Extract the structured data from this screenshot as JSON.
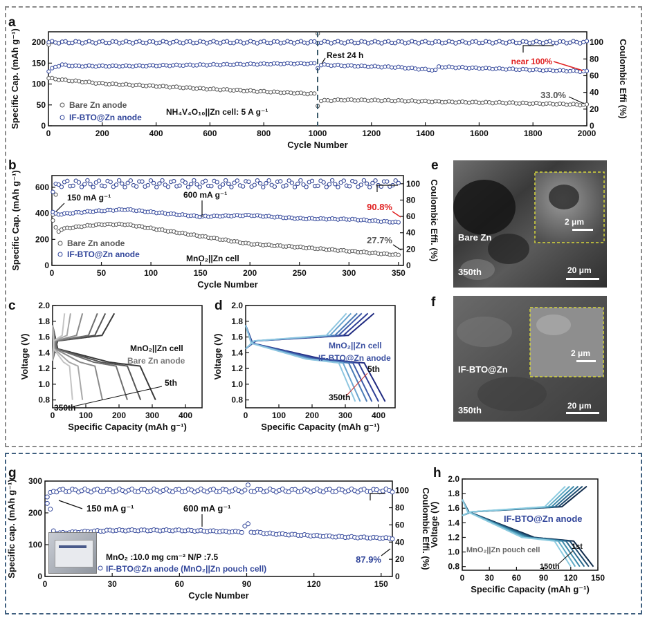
{
  "colors": {
    "blue": "#33479b",
    "gray": "#555555",
    "red": "#e02020"
  },
  "panels": [
    {
      "letter": "a",
      "chart_data": {
        "type": "scatter",
        "xlabel": "Cycle Number",
        "ylabel": "Specific Cap. (mAh g⁻¹)",
        "y2label": "Coulombic Effi (%)",
        "xlim": [
          0,
          2000
        ],
        "ylim": [
          0,
          225
        ],
        "y2lim": [
          0,
          112.5
        ],
        "xticks": [
          0,
          200,
          400,
          600,
          800,
          1000,
          1200,
          1400,
          1600,
          1800,
          2000
        ],
        "yticks": [
          0,
          50,
          100,
          150,
          200
        ],
        "y2ticks": [
          0,
          20,
          40,
          60,
          80,
          100
        ],
        "series": [
          {
            "name": "Bare Zn anode",
            "axis": "left",
            "color": "#555555",
            "x": [
              1,
              50,
              100,
              200,
              400,
              600,
              800,
              998,
              1000,
              1010,
              1100,
              1300,
              1500,
              1700,
              1900,
              2000
            ],
            "y": [
              114,
              110,
              107,
              101,
              95,
              88,
              82,
              76,
              48,
              60,
              62,
              60,
              57,
              55,
              52,
              50
            ]
          },
          {
            "name": "IF-BTO@Zn anode",
            "axis": "left",
            "color": "#33479b",
            "x": [
              1,
              20,
              50,
              100,
              300,
              500,
              700,
              900,
              998,
              1000,
              1005,
              1100,
              1300,
              1440,
              1450,
              1600,
              1800,
              2000
            ],
            "y": [
              130,
              140,
              146,
              143,
              143,
              145,
              147,
              149,
              149,
              138,
              146,
              144,
              140,
              133,
              141,
              138,
              134,
              130
            ]
          },
          {
            "name": "Bare Zn CE",
            "axis": "right",
            "color": "#555555",
            "x": [
              1,
              20,
              100,
              500,
              900,
              998,
              1000,
              1010,
              1400,
              2000
            ],
            "y": [
              97,
              100,
              100,
              100,
              100,
              100,
              112,
              100,
              100,
              100
            ]
          },
          {
            "name": "IF-BTO@Zn CE",
            "axis": "right",
            "color": "#33479b",
            "x": [
              1,
              2000
            ],
            "y": [
              100,
              100
            ]
          }
        ],
        "annotations": [
          "Rest 24 h",
          "near 100%",
          "33.0%",
          "NH₄V₄O₁₀||Zn cell: 5 A g⁻¹"
        ]
      }
    },
    {
      "letter": "b",
      "chart_data": {
        "type": "scatter",
        "xlabel": "Cycle Number",
        "ylabel": "Specific Cap. (mAh g⁻¹)",
        "y2label": "Coulombic Effi. (%)",
        "xlim": [
          0,
          355
        ],
        "ylim": [
          0,
          690
        ],
        "y2lim": [
          0,
          110
        ],
        "xticks": [
          0,
          50,
          100,
          150,
          200,
          250,
          300,
          350
        ],
        "yticks": [
          0,
          200,
          400,
          600
        ],
        "y2ticks": [
          0,
          20,
          40,
          60,
          80,
          100
        ],
        "series": [
          {
            "name": "Bare Zn anode",
            "axis": "left",
            "color": "#555555",
            "x": [
              1,
              5,
              10,
              30,
              50,
              75,
              100,
              150,
              200,
              250,
              300,
              350
            ],
            "y": [
              390,
              250,
              280,
              300,
              315,
              315,
              285,
              225,
              165,
              140,
              110,
              80
            ]
          },
          {
            "name": "IF-BTO@Zn anode",
            "axis": "left",
            "color": "#33479b",
            "x": [
              1,
              5,
              10,
              40,
              75,
              100,
              150,
              200,
              250,
              300,
              350
            ],
            "y": [
              410,
              390,
              395,
              415,
              430,
              410,
              375,
              385,
              360,
              355,
              330
            ]
          },
          {
            "name": "Bare Zn CE",
            "axis": "right",
            "color": "#555555",
            "x": [
              1,
              3,
              6,
              350
            ],
            "y": [
              55,
              75,
              100,
              100
            ]
          },
          {
            "name": "IF-BTO@Zn CE",
            "axis": "right",
            "color": "#33479b",
            "x": [
              1,
              6,
              350
            ],
            "y": [
              90,
              100,
              100
            ]
          }
        ],
        "annotations": [
          "150 mA g⁻¹",
          "600 mA g⁻¹",
          "90.8%",
          "27.7%",
          "MnO₂||Zn cell"
        ]
      }
    },
    {
      "letter": "c",
      "chart_data": {
        "type": "line",
        "xlabel": "Specific Capacity (mAh g⁻¹)",
        "ylabel": "Voltage (V)",
        "xlim": [
          0,
          450
        ],
        "ylim": [
          0.7,
          2.0
        ],
        "xticks": [
          0,
          100,
          200,
          300,
          400
        ],
        "yticks": [
          0.8,
          1.0,
          1.2,
          1.4,
          1.6,
          1.8,
          2.0
        ],
        "cycle_capacities": [
          310,
          265,
          225,
          150,
          90,
          60
        ],
        "annotations": [
          "MnO₂||Zn cell",
          "Bare Zn anode",
          "5th",
          "350th"
        ]
      }
    },
    {
      "letter": "d",
      "chart_data": {
        "type": "line",
        "xlabel": "Specific Capacity (mAh g⁻¹)",
        "ylabel": "Voltage (V)",
        "xlim": [
          0,
          450
        ],
        "ylim": [
          0.7,
          2.0
        ],
        "xticks": [
          0,
          100,
          200,
          300,
          400
        ],
        "yticks": [
          0.8,
          1.0,
          1.2,
          1.4,
          1.6,
          1.8,
          2.0
        ],
        "cycle_capacities": [
          420,
          400,
          380,
          365,
          345,
          330
        ],
        "annotations": [
          "MnO₂||Zn cell",
          "IF-BTO@Zn anode",
          "5th",
          "350th"
        ]
      }
    },
    {
      "letter": "g",
      "chart_data": {
        "type": "scatter",
        "xlabel": "Cycle Number",
        "ylabel": "Specific cap. (mAh g⁻¹)",
        "y2label": "Coulombic Effi. (%)",
        "xlim": [
          0,
          155
        ],
        "ylim": [
          0,
          300
        ],
        "y2lim": [
          0,
          111
        ],
        "xticks": [
          0,
          30,
          60,
          90,
          120,
          150
        ],
        "yticks": [
          0,
          100,
          200,
          300
        ],
        "y2ticks": [
          0,
          20,
          40,
          60,
          80,
          100
        ],
        "series": [
          {
            "name": "IF-BTO@Zn anode (MnO₂||Zn pouch cell)",
            "axis": "left",
            "color": "#33479b",
            "x": [
              1,
              2,
              3,
              4,
              10,
              30,
              60,
              88,
              90,
              91,
              92,
              100,
              130,
              155
            ],
            "y": [
              250,
              230,
              180,
              135,
              138,
              145,
              145,
              140,
              170,
              160,
              140,
              135,
              125,
              120
            ]
          },
          {
            "name": "CE",
            "axis": "right",
            "color": "#33479b",
            "x": [
              1,
              2,
              4,
              10,
              90,
              91,
              92,
              155
            ],
            "y": [
              85,
              95,
              100,
              100,
              100,
              108,
              100,
              100
            ]
          }
        ],
        "annotations": [
          "150 mA g⁻¹",
          "600 mA g⁻¹",
          "87.9%",
          "MnO₂ :10.0 mg cm⁻²  N/P :7.5"
        ]
      }
    },
    {
      "letter": "h",
      "chart_data": {
        "type": "line",
        "xlabel": "Specific Capacity (mAh g⁻¹)",
        "ylabel": "Voltage (V)",
        "xlim": [
          0,
          150
        ],
        "ylim": [
          0.75,
          2.0
        ],
        "xticks": [
          0,
          30,
          60,
          90,
          120,
          150
        ],
        "yticks": [
          0.8,
          1.0,
          1.2,
          1.4,
          1.6,
          1.8,
          2.0
        ],
        "cycle_capacities": [
          145,
          140,
          135,
          130,
          125,
          120
        ],
        "annotations": [
          "IF-BTO@Zn anode",
          "MnO₂||Zn pouch cell",
          "1st",
          "150th"
        ]
      }
    }
  ],
  "sem": [
    {
      "letter": "e",
      "label": "Bare Zn",
      "cycle": "350th",
      "scale_main": "20 μm",
      "scale_inset": "2 μm"
    },
    {
      "letter": "f",
      "label": "IF-BTO@Zn",
      "cycle": "350th",
      "scale_main": "20 μm",
      "scale_inset": "2 μm"
    }
  ]
}
